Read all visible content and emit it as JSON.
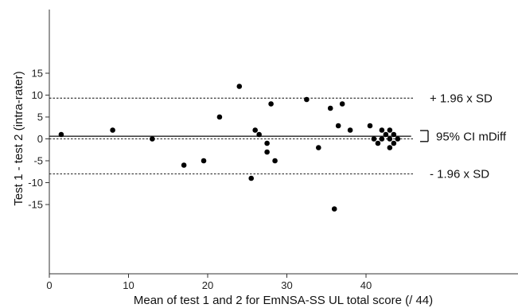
{
  "chart_data": {
    "type": "scatter",
    "title": "",
    "xlabel": "Mean of test 1 and 2 for EmNSA-SS UL total score (/ 44)",
    "ylabel": "Test 1 - test 2 (intra-rater)",
    "xlim": [
      0,
      60
    ],
    "ylim": [
      -18,
      18
    ],
    "xticks": [
      0,
      10,
      20,
      30,
      40
    ],
    "yticks": [
      -15,
      -10,
      -5,
      0,
      5,
      10,
      15
    ],
    "grid": false,
    "legend": "none",
    "points": [
      {
        "x": 1.5,
        "y": 1
      },
      {
        "x": 8,
        "y": 2
      },
      {
        "x": 13,
        "y": 0
      },
      {
        "x": 17,
        "y": -6
      },
      {
        "x": 19.5,
        "y": -5
      },
      {
        "x": 21.5,
        "y": 5
      },
      {
        "x": 24,
        "y": 12
      },
      {
        "x": 25.5,
        "y": -9
      },
      {
        "x": 26,
        "y": 2
      },
      {
        "x": 26.5,
        "y": 1
      },
      {
        "x": 27.5,
        "y": -1
      },
      {
        "x": 27.5,
        "y": -3
      },
      {
        "x": 28,
        "y": 8
      },
      {
        "x": 28.5,
        "y": -5
      },
      {
        "x": 32.5,
        "y": 9
      },
      {
        "x": 34,
        "y": -2
      },
      {
        "x": 35.5,
        "y": 7
      },
      {
        "x": 36,
        "y": -16
      },
      {
        "x": 36.5,
        "y": 3
      },
      {
        "x": 37,
        "y": 8
      },
      {
        "x": 38,
        "y": 2
      },
      {
        "x": 40.5,
        "y": 3
      },
      {
        "x": 41,
        "y": 0
      },
      {
        "x": 41.5,
        "y": -1
      },
      {
        "x": 42,
        "y": 2
      },
      {
        "x": 42,
        "y": 0
      },
      {
        "x": 42.5,
        "y": 1
      },
      {
        "x": 43,
        "y": 2
      },
      {
        "x": 43,
        "y": 0
      },
      {
        "x": 43,
        "y": -2
      },
      {
        "x": 43.5,
        "y": 1
      },
      {
        "x": 43.5,
        "y": -1
      },
      {
        "x": 44,
        "y": 0
      }
    ],
    "reference_lines": [
      {
        "y": 9.3,
        "style": "dotted",
        "label": "+ 1.96 x SD"
      },
      {
        "y": 0.6,
        "style": "solid",
        "label": ""
      },
      {
        "y": 0,
        "style": "dotted",
        "label": ""
      },
      {
        "y": -8,
        "style": "dotted",
        "label": "- 1.96 x SD"
      }
    ],
    "line_x_range": [
      0,
      46
    ],
    "ci_bracket": {
      "low": -0.6,
      "high": 1.9,
      "label": "95% CI mDiff"
    },
    "colors": {
      "points": "#000000",
      "lines": "#222222",
      "axis": "#333333"
    }
  }
}
